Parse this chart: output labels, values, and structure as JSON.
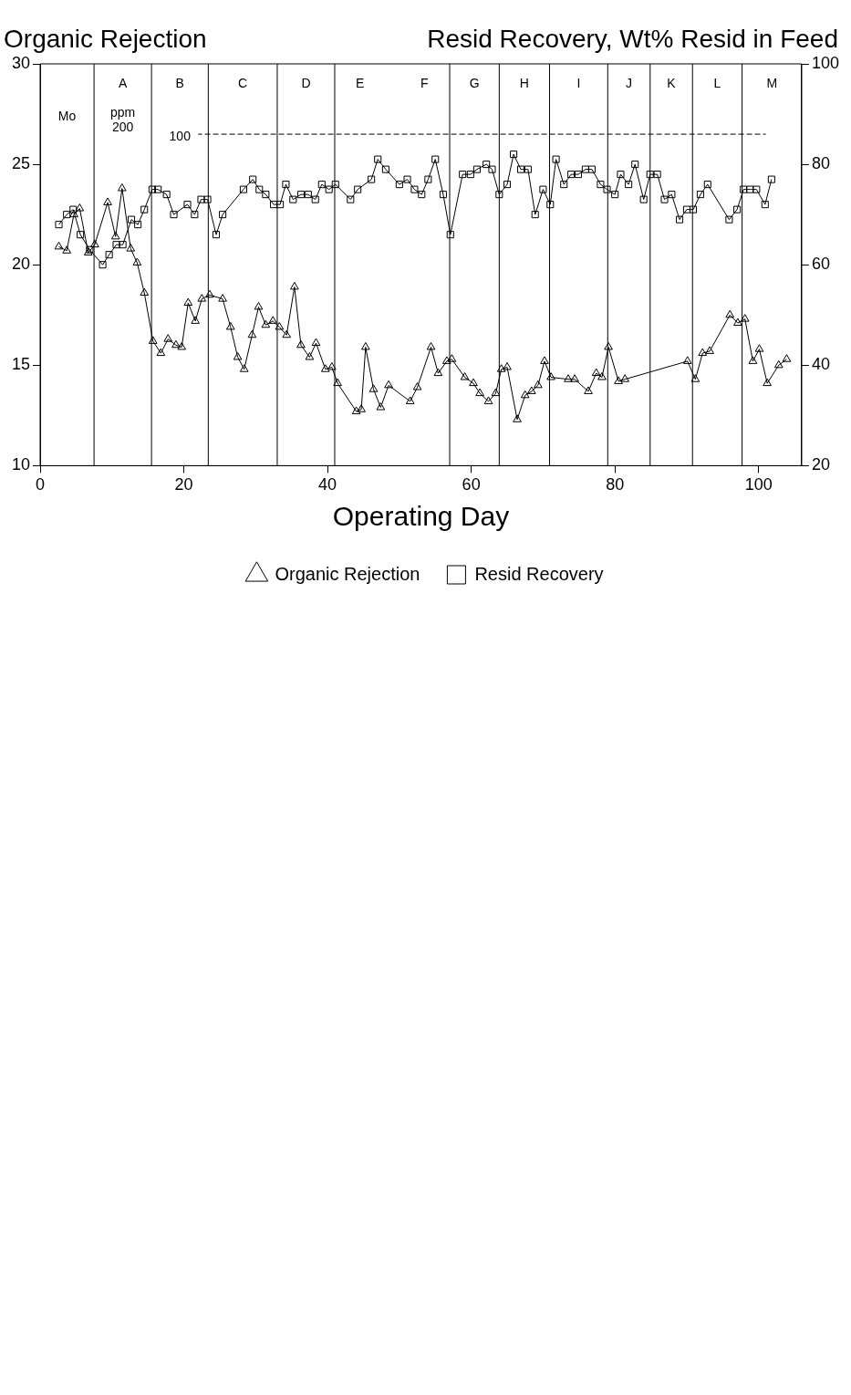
{
  "chart_data": {
    "type": "line",
    "xlabel": "Operating Day",
    "ylabel": "Organic Rejection",
    "y2label": "Resid Recovery, Wt% Resid in Feed",
    "xlim": [
      0,
      106
    ],
    "xticks": [
      0,
      20,
      40,
      60,
      80,
      100
    ],
    "ylim": [
      10,
      30
    ],
    "yticks": [
      10,
      15,
      20,
      25,
      30
    ],
    "y2lim": [
      20,
      100
    ],
    "y2ticks": [
      20,
      40,
      60,
      80,
      100
    ],
    "grid": false,
    "legend": "bottom",
    "series": [
      {
        "name": "Organic Rejection",
        "color": "#000000",
        "marker": "triangle",
        "x": [
          2.6,
          3.7,
          4.7,
          5.5,
          6.7,
          7.6,
          9.4,
          10.5,
          11.4,
          12.6,
          13.5,
          14.5,
          15.7,
          16.8,
          17.8,
          18.9,
          19.7,
          20.6,
          21.6,
          22.5,
          23.6,
          25.4,
          26.5,
          27.5,
          28.4,
          29.5,
          30.4,
          31.4,
          32.4,
          33.3,
          34.3,
          35.4,
          36.3,
          37.5,
          38.4,
          39.7,
          40.6,
          41.4,
          44.0,
          44.7,
          45.3,
          46.4,
          47.4,
          48.5,
          51.5,
          52.5,
          54.4,
          55.4,
          56.6,
          57.3,
          59.1,
          60.3,
          61.2,
          62.4,
          63.4,
          64.2,
          65.0,
          66.4,
          67.5,
          68.4,
          69.3,
          70.2,
          71.1,
          73.5,
          74.4,
          76.3,
          77.4,
          78.2,
          79.1,
          80.5,
          81.4,
          90.1,
          91.2,
          92.2,
          93.2,
          96.0,
          97.1,
          98.1,
          99.2,
          100.1,
          101.2,
          102.8,
          103.9
        ],
        "values": [
          20.9,
          20.7,
          22.5,
          22.8,
          20.6,
          21.0,
          23.1,
          21.4,
          23.8,
          20.8,
          20.1,
          18.6,
          16.2,
          15.6,
          16.3,
          16.0,
          15.9,
          18.1,
          17.2,
          18.3,
          18.5,
          18.3,
          16.9,
          15.4,
          14.8,
          16.5,
          17.9,
          17.0,
          17.2,
          16.9,
          16.5,
          18.9,
          16.0,
          15.4,
          16.1,
          14.8,
          14.9,
          14.1,
          12.7,
          12.8,
          15.9,
          13.8,
          12.9,
          14.0,
          13.2,
          13.9,
          15.9,
          14.6,
          15.2,
          15.3,
          14.4,
          14.1,
          13.6,
          13.2,
          13.6,
          14.8,
          14.9,
          12.3,
          13.5,
          13.7,
          14.0,
          15.2,
          14.4,
          14.3,
          14.3,
          13.7,
          14.6,
          14.4,
          15.9,
          14.2,
          14.3,
          15.2,
          14.3,
          15.6,
          15.7,
          17.5,
          17.1,
          17.3,
          15.2,
          15.8,
          14.1,
          15.0,
          15.3
        ]
      },
      {
        "name": "Resid Recovery",
        "axis": "y2",
        "color": "#000000",
        "marker": "square",
        "x": [
          2.6,
          3.7,
          4.6,
          5.6,
          6.9,
          8.7,
          9.6,
          10.6,
          11.5,
          12.7,
          13.6,
          14.5,
          15.6,
          16.4,
          17.6,
          18.6,
          20.5,
          21.5,
          22.4,
          23.3,
          24.5,
          25.4,
          28.3,
          29.6,
          30.5,
          31.4,
          32.5,
          33.4,
          34.2,
          35.2,
          36.3,
          37.3,
          38.3,
          39.2,
          40.2,
          41.1,
          43.2,
          44.2,
          46.1,
          47.0,
          48.1,
          50.0,
          51.1,
          52.1,
          53.1,
          54.0,
          55.0,
          56.1,
          57.1,
          58.8,
          59.9,
          60.8,
          62.1,
          62.9,
          63.9,
          65.0,
          65.9,
          66.9,
          67.9,
          68.9,
          70.0,
          71.0,
          71.8,
          72.9,
          73.9,
          74.9,
          75.9,
          76.8,
          78.0,
          78.9,
          80.0,
          80.8,
          81.9,
          82.8,
          84.0,
          84.9,
          85.9,
          86.9,
          87.9,
          89.0,
          90.0,
          90.9,
          91.9,
          92.9,
          95.9,
          97.0,
          97.9,
          98.8,
          99.7,
          100.9,
          101.8
        ],
        "values": [
          68,
          70,
          71,
          66,
          63,
          60,
          62,
          64,
          64,
          69,
          68,
          71,
          75,
          75,
          74,
          70,
          72,
          70,
          73,
          73,
          66,
          70,
          75,
          77,
          75,
          74,
          72,
          72,
          76,
          73,
          74,
          74,
          73,
          76,
          75,
          76,
          73,
          75,
          77,
          81,
          79,
          76,
          77,
          75,
          74,
          77,
          81,
          74,
          66,
          78,
          78,
          79,
          80,
          79,
          74,
          76,
          82,
          79,
          79,
          70,
          75,
          72,
          81,
          76,
          78,
          78,
          79,
          79,
          76,
          75,
          74,
          78,
          76,
          80,
          73,
          78,
          78,
          73,
          74,
          69,
          71,
          71,
          74,
          76,
          69,
          71,
          75,
          75,
          75,
          72,
          77
        ]
      },
      {
        "axis": "y2",
        "color": "#000000",
        "marker": "none",
        "line_style": "dashed",
        "x": [
          22,
          101
        ],
        "values": [
          86,
          86
        ]
      }
    ],
    "ref_lines": [
      {
        "axis": "x",
        "value": 7.5
      },
      {
        "axis": "x",
        "value": 15.5
      },
      {
        "axis": "x",
        "value": 23.4
      },
      {
        "axis": "x",
        "value": 33.0
      },
      {
        "axis": "x",
        "value": 41.0
      },
      {
        "axis": "x",
        "value": 57.0
      },
      {
        "axis": "x",
        "value": 63.9
      },
      {
        "axis": "x",
        "value": 70.9
      },
      {
        "axis": "x",
        "value": 79.0
      },
      {
        "axis": "x",
        "value": 84.9
      },
      {
        "axis": "x",
        "value": 90.8
      },
      {
        "axis": "x",
        "value": 97.7
      }
    ],
    "annotations": [
      "Mo",
      "ppm",
      "200",
      "100",
      "A",
      "B",
      "C",
      "D",
      "E",
      "F",
      "G",
      "H",
      "I",
      "J",
      "K",
      "L",
      "M"
    ]
  }
}
